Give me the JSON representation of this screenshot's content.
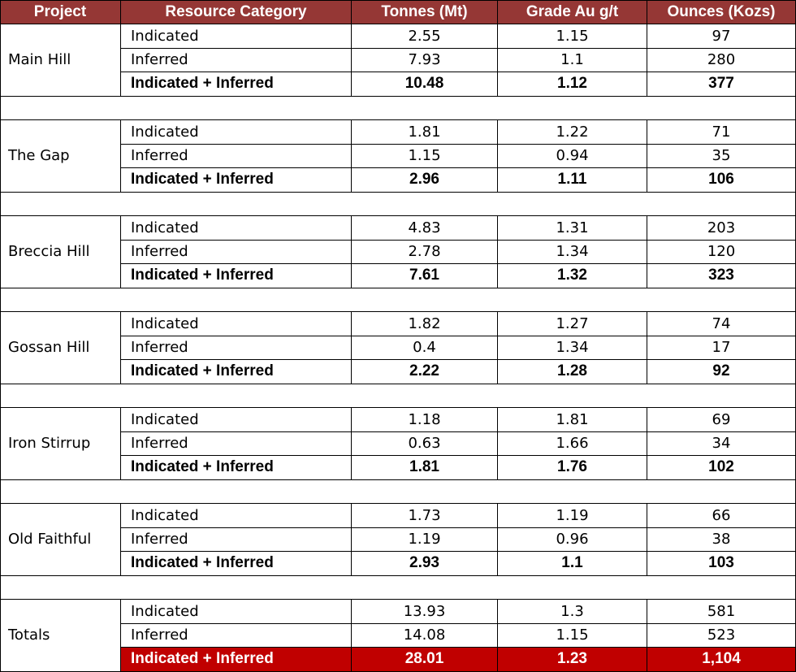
{
  "table": {
    "header": [
      "Project",
      "Resource Category",
      "Tonnes (Mt)",
      "Grade Au g/t",
      "Ounces (Kozs)"
    ],
    "groups": [
      {
        "project": "Main Hill",
        "rows": [
          [
            "Indicated",
            "2.55",
            "1.15",
            "97"
          ],
          [
            "Inferred",
            "7.93",
            "1.1",
            "280"
          ],
          [
            "Indicated + Inferred",
            "10.48",
            "1.12",
            "377"
          ]
        ]
      },
      {
        "project": "The Gap",
        "rows": [
          [
            "Indicated",
            "1.81",
            "1.22",
            "71"
          ],
          [
            "Inferred",
            "1.15",
            "0.94",
            "35"
          ],
          [
            "Indicated + Inferred",
            "2.96",
            "1.11",
            "106"
          ]
        ]
      },
      {
        "project": "Breccia Hill",
        "rows": [
          [
            "Indicated",
            "4.83",
            "1.31",
            "203"
          ],
          [
            "Inferred",
            "2.78",
            "1.34",
            "120"
          ],
          [
            "Indicated + Inferred",
            "7.61",
            "1.32",
            "323"
          ]
        ]
      },
      {
        "project": "Gossan Hill",
        "rows": [
          [
            "Indicated",
            "1.82",
            "1.27",
            "74"
          ],
          [
            "Inferred",
            "0.4",
            "1.34",
            "17"
          ],
          [
            "Indicated + Inferred",
            "2.22",
            "1.28",
            "92"
          ]
        ]
      },
      {
        "project": "Iron Stirrup",
        "rows": [
          [
            "Indicated",
            "1.18",
            "1.81",
            "69"
          ],
          [
            "Inferred",
            "0.63",
            "1.66",
            "34"
          ],
          [
            "Indicated + Inferred",
            "1.81",
            "1.76",
            "102"
          ]
        ]
      },
      {
        "project": "Old Faithful",
        "rows": [
          [
            "Indicated",
            "1.73",
            "1.19",
            "66"
          ],
          [
            "Inferred",
            "1.19",
            "0.96",
            "38"
          ],
          [
            "Indicated + Inferred",
            "2.93",
            "1.1",
            "103"
          ]
        ]
      },
      {
        "project": "Totals",
        "rows": [
          [
            "Indicated",
            "13.93",
            "1.3",
            "581"
          ],
          [
            "Inferred",
            "14.08",
            "1.15",
            "523"
          ],
          [
            "Indicated + Inferred",
            "28.01",
            "1.23",
            "1,104"
          ]
        ]
      }
    ]
  }
}
